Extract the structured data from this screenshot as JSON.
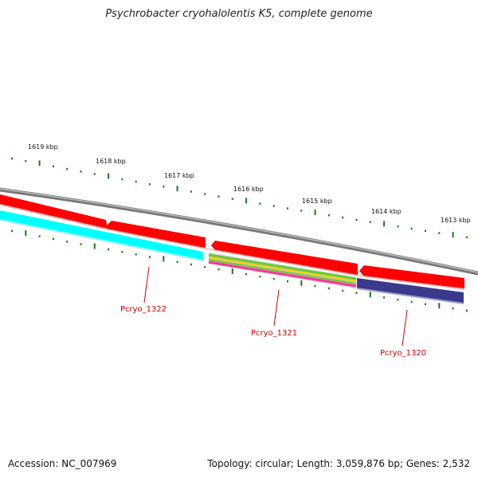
{
  "title": "Psychrobacter cryohalolentis K5, complete genome",
  "accession": "Accession: NC_007969",
  "summary": "Topology: circular; Length: 3,059,876 bp; Genes: 2,532",
  "scale_labels": [
    "1619 kbp",
    "1618 kbp",
    "1617 kbp",
    "1616 kbp",
    "1615 kbp",
    "1614 kbp",
    "1613 kbp"
  ],
  "gene_labels": [
    "Pcryo_1322",
    "Pcryo_1321",
    "Pcryo_1320"
  ],
  "colors": {
    "backbone": "#808080",
    "cds": "#ff0000",
    "tick": "#1a7a1a",
    "label": "#d40000",
    "cog_cyan": "#00ffff",
    "cog_navy": "#3a3a8c",
    "cog_pink": "#ff3399",
    "cog_green": "#66cc33",
    "cog_yellow": "#ffcc00"
  }
}
